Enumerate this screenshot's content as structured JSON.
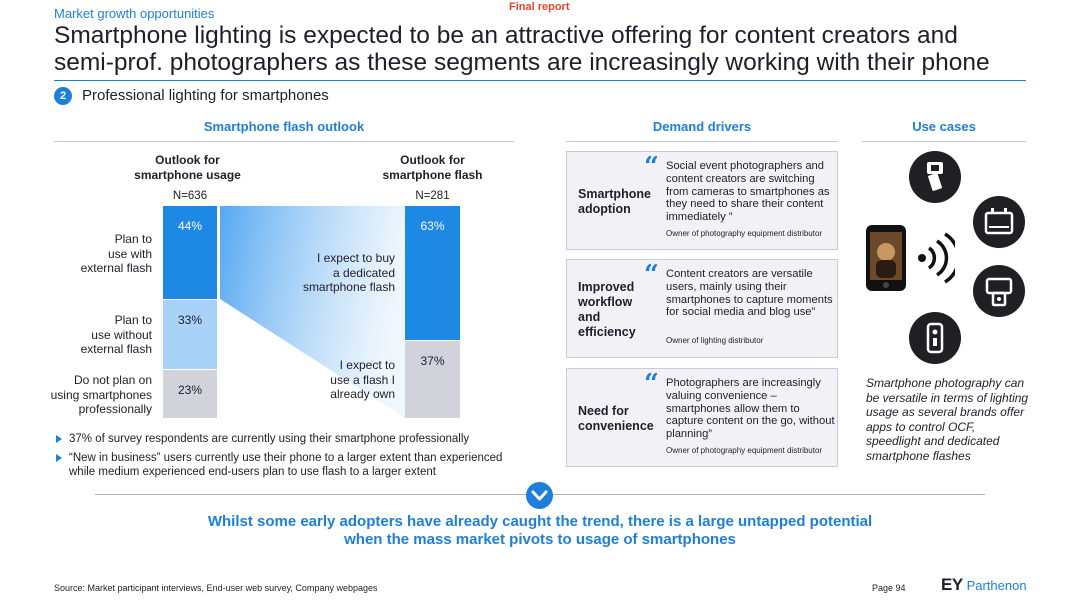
{
  "header": {
    "section_label": "Market growth opportunities",
    "status": "Final report",
    "title_line1": "Smartphone lighting is expected to be an attractive offering for content creators and",
    "title_line2": "semi-prof. photographers as these segments are increasingly working with their phone",
    "badge_number": "2",
    "subtitle": "Professional lighting for smartphones"
  },
  "columns": {
    "outlook": "Smartphone flash outlook",
    "drivers": "Demand drivers",
    "use_cases": "Use cases"
  },
  "chart_data": {
    "type": "bar",
    "stacked": true,
    "bars": [
      {
        "title_line1": "Outlook for",
        "title_line2": "smartphone usage",
        "n": "N=636",
        "segments": [
          {
            "label_lines": [
              "Plan to",
              "use with",
              "external flash"
            ],
            "value": 44,
            "text": "44%",
            "color": "#1e88e5"
          },
          {
            "label_lines": [
              "Plan to",
              "use without",
              "external flash"
            ],
            "value": 33,
            "text": "33%",
            "color": "#a8d2f8"
          },
          {
            "label_lines": [
              "Do not plan on",
              "using smartphones",
              "professionally"
            ],
            "value": 23,
            "text": "23%",
            "color": "#d2d2da"
          }
        ]
      },
      {
        "title_line1": "Outlook for",
        "title_line2": "smartphone flash",
        "n": "N=281",
        "segments": [
          {
            "label_lines": [
              "I expect to buy",
              "a dedicated",
              "smartphone flash"
            ],
            "value": 63,
            "text": "63%",
            "color": "#1e88e5"
          },
          {
            "label_lines": [
              "I expect to",
              "use a flash I",
              "already own"
            ],
            "value": 37,
            "text": "37%",
            "color": "#d2d2da"
          }
        ]
      }
    ]
  },
  "bullets": [
    "37% of survey respondents are currently using their smartphone professionally",
    "“New in business” users currently use their phone to a larger extent than experienced while medium experienced end-users plan to use flash to a larger extent"
  ],
  "drivers": [
    {
      "name_lines": [
        "Smartphone",
        "adoption"
      ],
      "quote": "Social event photographers and content creators are switching from cameras to smartphones as they need to share their content immediately ”",
      "source": "Owner of photography equipment distributor"
    },
    {
      "name_lines": [
        "Improved",
        "workflow",
        "and",
        "efficiency"
      ],
      "quote": "Content creators are versatile users, mainly using their smartphones to capture moments for social media and blog use”",
      "source": "Owner of lighting distributor"
    },
    {
      "name_lines": [
        "Need for",
        "convenience"
      ],
      "quote": "Photographers are increasingly valuing convenience – smartphones allow them to capture content on the go, without planning”",
      "source": "Owner of photography equipment distributor"
    }
  ],
  "quote_mark": "“",
  "use_case_icons": [
    "flash-icon",
    "softbox-light-icon",
    "speedlight-icon",
    "clip-light-icon",
    "smartphone-icon",
    "wireless-signal-icon"
  ],
  "use_case_caption": "Smartphone photography can be versatile in terms of lighting usage as several brands offer apps to control OCF, speedlight and dedicated smartphone flashes",
  "takeaway": "Whilst some early adopters have already caught the trend, there is a large untapped potential when the mass market pivots to usage of smartphones",
  "footer": {
    "source": "Source: Market participant interviews, End-user web survey, Company webpages",
    "page": "Page 94",
    "logo_ey": "EY",
    "logo_parthenon": "Parthenon"
  },
  "colors": {
    "accent": "#1e7fd8",
    "status": "#e8442c",
    "bar_dark": "#1e88e5",
    "bar_light": "#a8d2f8",
    "bar_grey": "#d2d2da"
  }
}
